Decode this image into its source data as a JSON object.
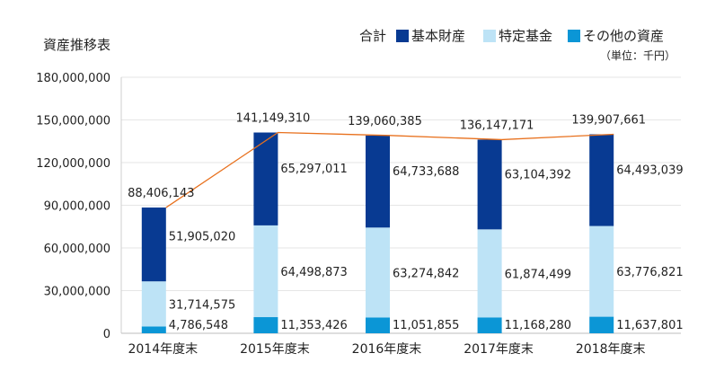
{
  "chart_data": {
    "type": "bar",
    "stacked": true,
    "title": "資産推移表",
    "unit": "（単位：千円）",
    "categories": [
      "2014年度末",
      "2015年度末",
      "2016年度末",
      "2017年度末",
      "2018年度末"
    ],
    "ylim": [
      0,
      180000000
    ],
    "yticks": [
      "180,000,000",
      "150,000,000",
      "120,000,000",
      "90,000,000",
      "60,000,000",
      "30,000,000",
      "0"
    ],
    "ytick_values": [
      180000000,
      150000000,
      120000000,
      90000000,
      60000000,
      30000000,
      0
    ],
    "legend_position": "top-right",
    "series": [
      {
        "name": "その他の資産",
        "color": "#0b96d6",
        "values": [
          4786548,
          11353426,
          11051855,
          11168280,
          11637801
        ],
        "labels": [
          "4,786,548",
          "11,353,426",
          "11,051,855",
          "11,168,280",
          "11,637,801"
        ]
      },
      {
        "name": "特定基金",
        "color": "#bde3f6",
        "values": [
          31714575,
          64498873,
          63274842,
          61874499,
          63776821
        ],
        "labels": [
          "31,714,575",
          "64,498,873",
          "63,274,842",
          "61,874,499",
          "63,776,821"
        ]
      },
      {
        "name": "基本財産",
        "color": "#083a92",
        "values": [
          51905020,
          65297011,
          64733688,
          63104392,
          64493039
        ],
        "labels": [
          "51,905,020",
          "65,297,011",
          "64,733,688",
          "63,104,392",
          "64,493,039"
        ]
      }
    ],
    "total": {
      "name": "合計",
      "color": "#e8711e",
      "values": [
        88406143,
        141149310,
        139060385,
        136147171,
        139907661
      ],
      "labels": [
        "88,406,143",
        "141,149,310",
        "139,060,385",
        "136,147,171",
        "139,907,661"
      ]
    }
  }
}
